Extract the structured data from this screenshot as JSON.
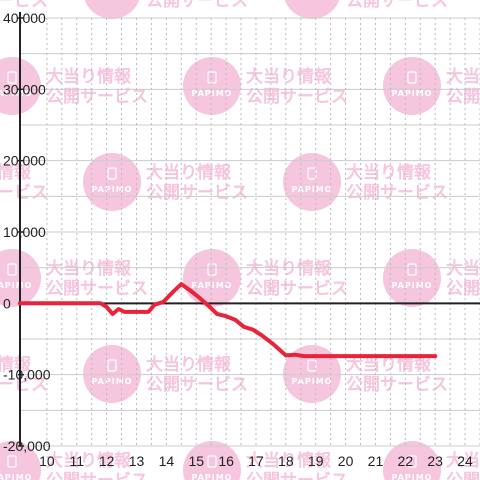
{
  "chart_data": {
    "type": "line",
    "title": "",
    "xlabel": "",
    "ylabel": "",
    "x_ticks": [
      "10",
      "11",
      "12",
      "13",
      "14",
      "15",
      "16",
      "17",
      "18",
      "19",
      "20",
      "21",
      "22",
      "23",
      "24"
    ],
    "y_ticks": [
      "40,000",
      "30,000",
      "20,000",
      "10,000",
      "0",
      "-10,000",
      "-20,000"
    ],
    "xlim": [
      9.1,
      24.5
    ],
    "ylim": [
      -20000,
      40000
    ],
    "grid": true,
    "series": [
      {
        "color": "#e8233a",
        "points": [
          [
            9.1,
            0
          ],
          [
            11.8,
            0
          ],
          [
            12.0,
            -500
          ],
          [
            12.2,
            -1500
          ],
          [
            12.4,
            -800
          ],
          [
            12.6,
            -1200
          ],
          [
            13.0,
            -1200
          ],
          [
            13.4,
            -1200
          ],
          [
            13.6,
            -200
          ],
          [
            13.9,
            200
          ],
          [
            14.2,
            1500
          ],
          [
            14.5,
            2700
          ],
          [
            14.8,
            1800
          ],
          [
            15.1,
            800
          ],
          [
            15.4,
            -300
          ],
          [
            15.7,
            -1500
          ],
          [
            16.0,
            -1800
          ],
          [
            16.3,
            -2300
          ],
          [
            16.6,
            -3300
          ],
          [
            16.9,
            -3700
          ],
          [
            17.2,
            -4500
          ],
          [
            17.6,
            -5800
          ],
          [
            18.0,
            -7300
          ],
          [
            18.3,
            -7200
          ],
          [
            18.6,
            -7400
          ],
          [
            19.5,
            -7400
          ],
          [
            20.5,
            -7400
          ],
          [
            21.5,
            -7400
          ],
          [
            22.5,
            -7400
          ],
          [
            23.0,
            -7400
          ]
        ]
      }
    ],
    "watermark": {
      "logo_text": "PAPIMO",
      "line1": "大当り情報",
      "line2": "公開サービス",
      "color": "#f6c6de"
    }
  }
}
